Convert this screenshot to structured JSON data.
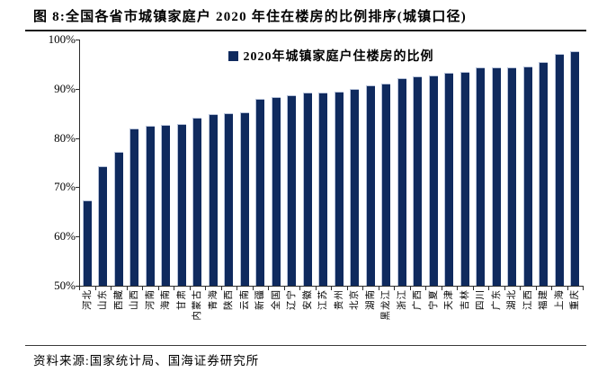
{
  "figure": {
    "title": "图 8:全国各省市城镇家庭户 2020 年住在楼房的比例排序(城镇口径)",
    "source": "资料来源:国家统计局、国海证券研究所"
  },
  "chart_data": {
    "type": "bar",
    "title": "全国各省市城镇家庭户2020年住在楼房的比例排序(城镇口径)",
    "legend": "2020年城镇家庭户住楼房的比例",
    "legend_position": "top-center",
    "grid": false,
    "bar_color": "#0F2A5E",
    "axis_color": "#2B2B2B",
    "xlabel": "",
    "ylabel": "",
    "ylim": [
      50,
      100
    ],
    "yticks": [
      {
        "value": 100,
        "label": "100%"
      },
      {
        "value": 90,
        "label": "90%"
      },
      {
        "value": 80,
        "label": "80%"
      },
      {
        "value": 70,
        "label": "70%"
      },
      {
        "value": 60,
        "label": "60%"
      },
      {
        "value": 50,
        "label": "50%"
      }
    ],
    "categories": [
      "河北",
      "山东",
      "西藏",
      "山西",
      "河南",
      "海南",
      "甘肃",
      "内蒙古",
      "青海",
      "陕西",
      "云南",
      "新疆",
      "全国",
      "辽宁",
      "安徽",
      "江苏",
      "贵州",
      "北京",
      "湖南",
      "黑龙江",
      "浙江",
      "广西",
      "宁夏",
      "天津",
      "吉林",
      "四川",
      "广东",
      "湖北",
      "江西",
      "福建",
      "上海",
      "重庆"
    ],
    "values": [
      67.3,
      74.3,
      77.1,
      82.0,
      82.4,
      82.7,
      82.9,
      84.1,
      84.9,
      85.0,
      85.3,
      88.0,
      88.3,
      88.7,
      89.2,
      89.3,
      89.5,
      89.9,
      90.7,
      91.0,
      92.2,
      92.6,
      92.7,
      93.2,
      93.4,
      94.3,
      94.4,
      94.4,
      94.6,
      95.4,
      97.0,
      97.6
    ]
  }
}
